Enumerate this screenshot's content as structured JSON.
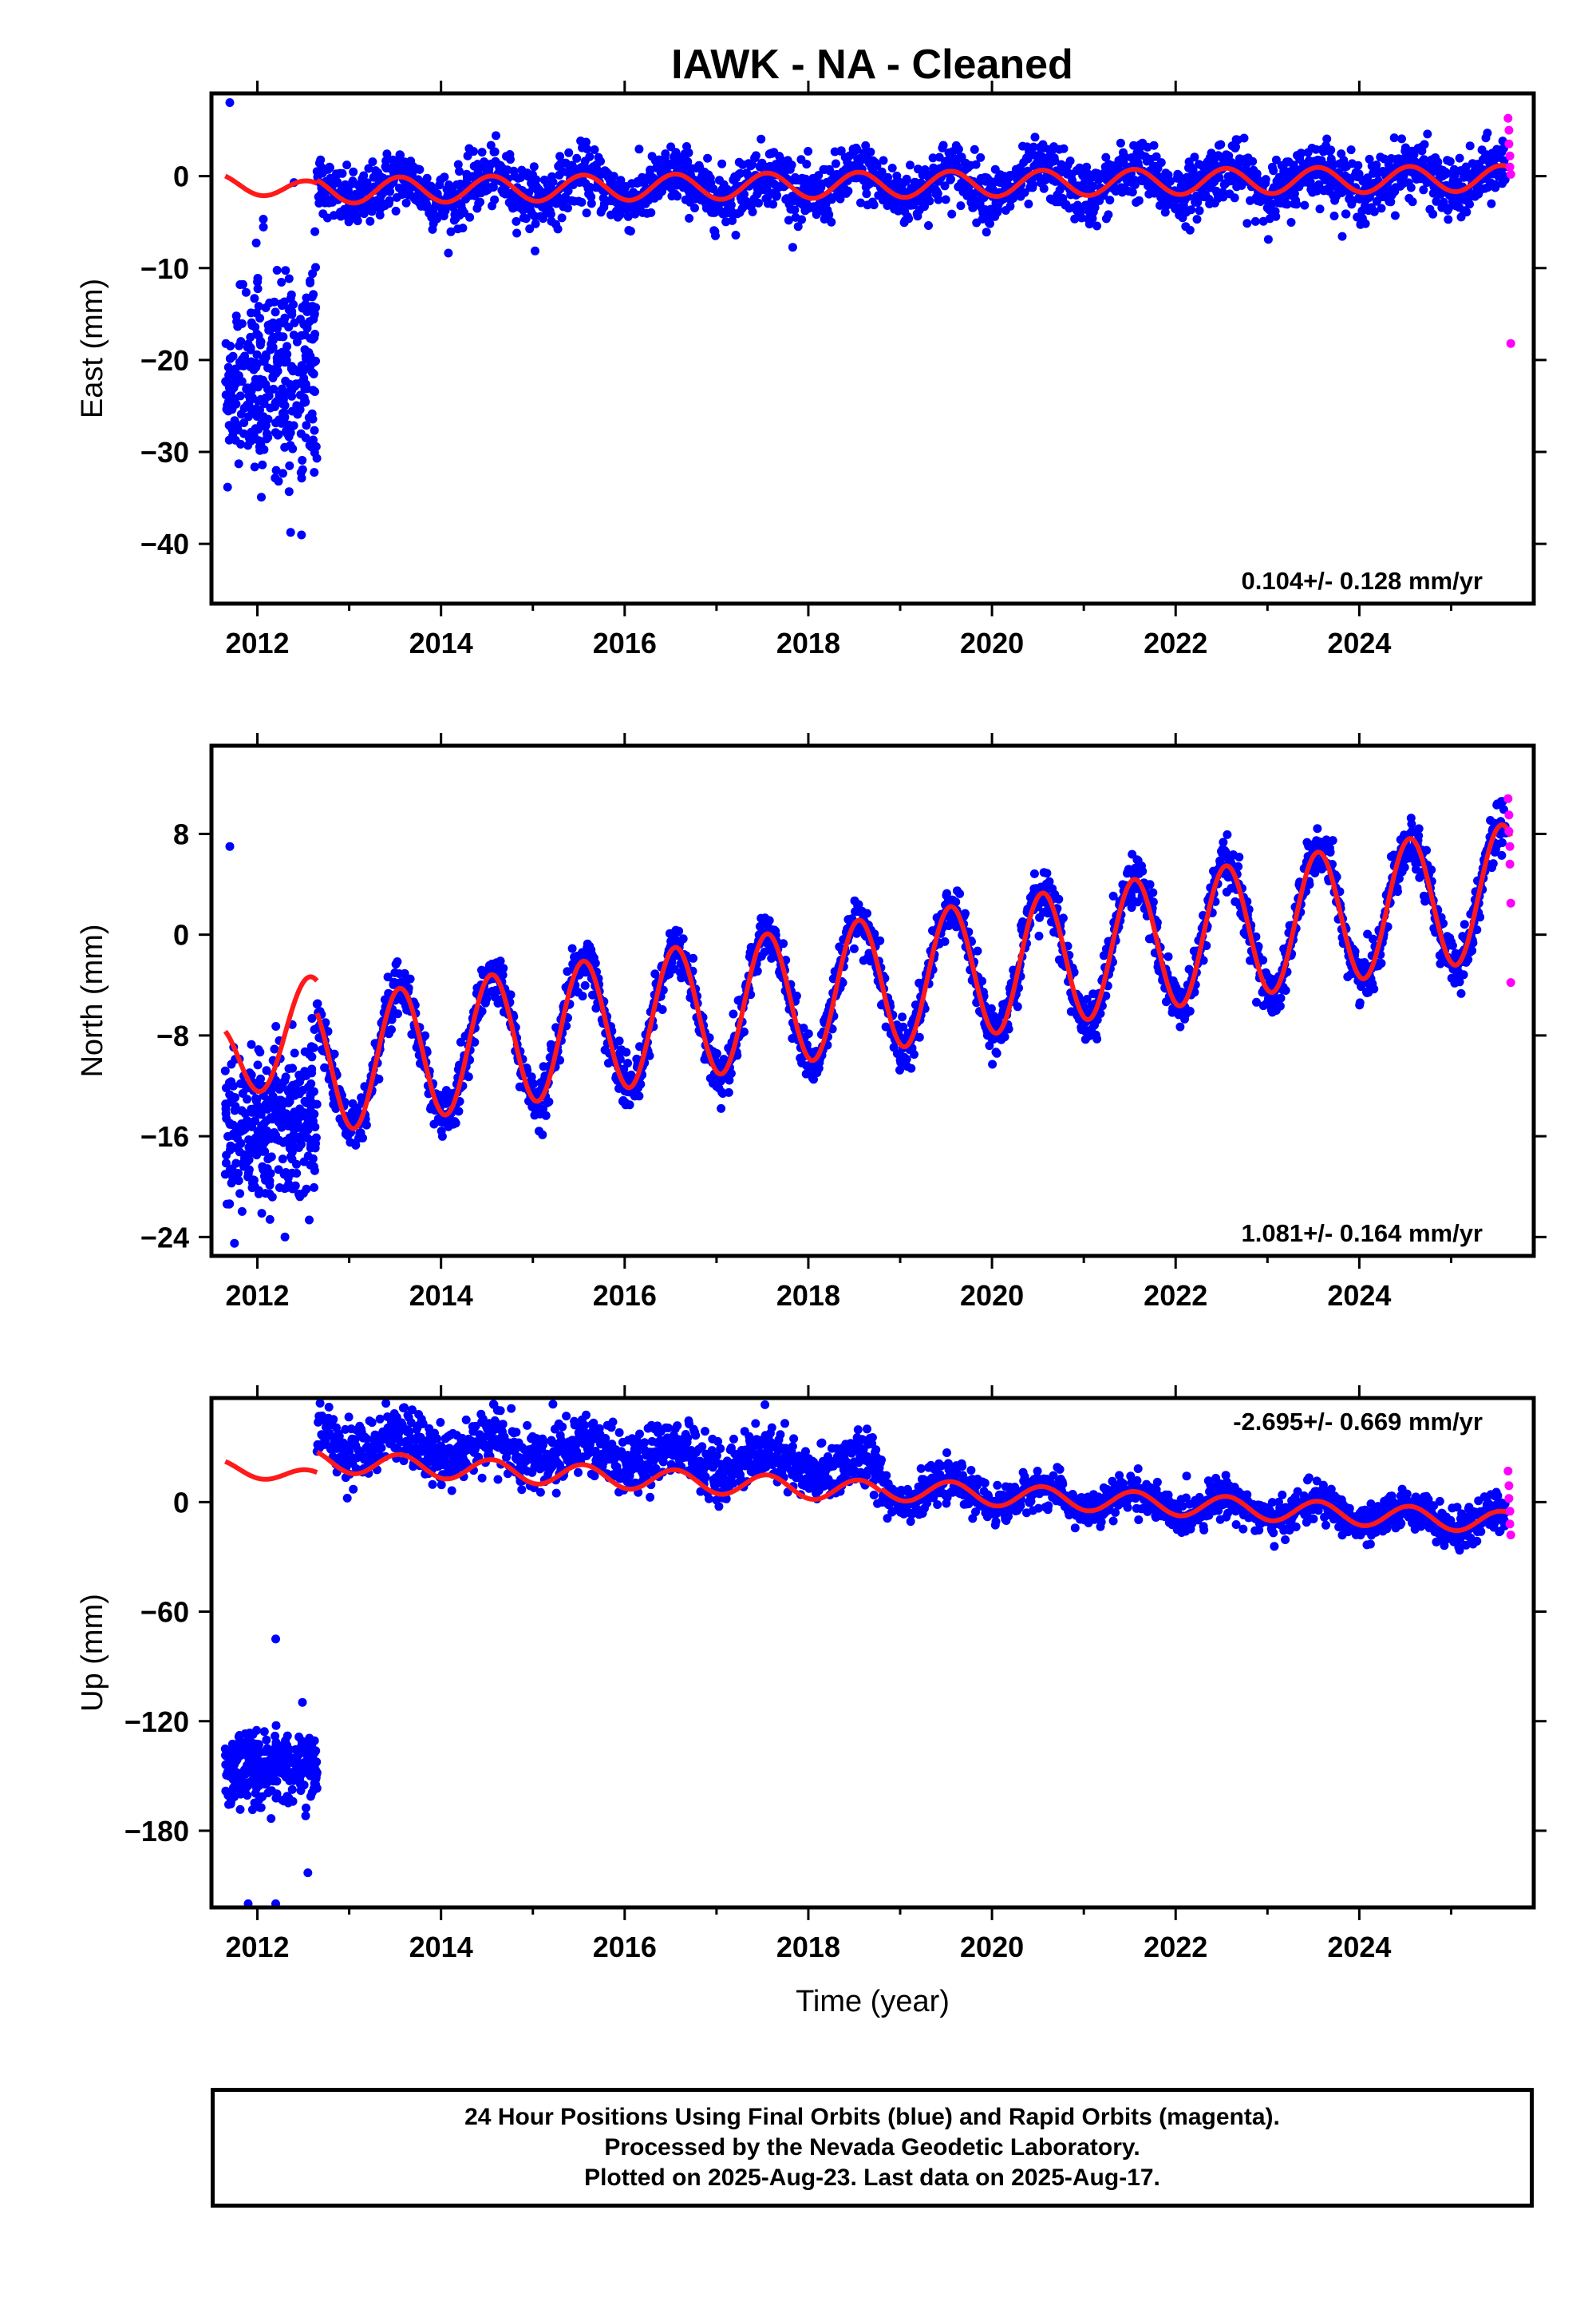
{
  "title": "IAWK  - NA - Cleaned",
  "colors": {
    "final_orbits": "#0000ff",
    "rapid_orbits": "#ff00ff",
    "model_fit": "#ff1a1a",
    "axes": "#000000"
  },
  "chart_data": [
    {
      "id": "east",
      "type": "scatter",
      "ylabel": "East (mm)",
      "xlabel": "",
      "xlim": [
        2011.5,
        2025.9
      ],
      "ylim": [
        -46.5,
        9
      ],
      "xticks": [
        2012,
        2014,
        2016,
        2018,
        2020,
        2022,
        2024
      ],
      "yticks": [
        0,
        -10,
        -20,
        -30,
        -40
      ],
      "ytick_labels": [
        "0",
        "−10",
        "−20",
        "−30",
        "−40"
      ],
      "rate_label": "0.104+/- 0.128 mm/yr",
      "rate_position": "bottom-right",
      "model": {
        "pre": {
          "start": 2011.65,
          "end": 2012.65,
          "level": -1.2,
          "amp": 1.0,
          "slope": -0.8
        },
        "post": {
          "start": 2012.65,
          "end": 2025.65,
          "level": -0.9,
          "amp": 1.4,
          "slope": 0.104
        }
      },
      "final_orbits": {
        "early": {
          "start": 2011.65,
          "end": 2012.65,
          "center": -22,
          "spread": 12,
          "count": 360
        },
        "steady_noise": 1.6,
        "count": 2400
      },
      "outliers": [
        [
          2011.7,
          8.0
        ]
      ],
      "rapid_orbits": [
        [
          2025.62,
          6.3
        ],
        [
          2025.63,
          5.0
        ],
        [
          2025.63,
          3.5
        ],
        [
          2025.64,
          2.2
        ],
        [
          2025.64,
          1.0
        ],
        [
          2025.65,
          0.2
        ],
        [
          2025.65,
          -18.2
        ]
      ]
    },
    {
      "id": "north",
      "type": "scatter",
      "ylabel": "North (mm)",
      "xlabel": "",
      "xlim": [
        2011.5,
        2025.9
      ],
      "ylim": [
        -25.5,
        15
      ],
      "xticks": [
        2012,
        2014,
        2016,
        2018,
        2020,
        2022,
        2024
      ],
      "yticks": [
        8,
        0,
        -8,
        -16,
        -24
      ],
      "ytick_labels": [
        "8",
        "0",
        "−8",
        "−16",
        "−24"
      ],
      "rate_label": "1.081+/- 0.164 mm/yr",
      "rate_position": "bottom-right",
      "model": {
        "pre": {
          "start": 2011.65,
          "end": 2012.65,
          "level": -8.5,
          "amp": 3.5,
          "slope": 4.0
        },
        "post": {
          "start": 2012.65,
          "end": 2025.65,
          "level": -3.5,
          "amp": 5.3,
          "slope": 1.081
        }
      },
      "final_orbits": {
        "early": {
          "start": 2011.65,
          "end": 2012.65,
          "center": -15,
          "spread": 6,
          "count": 360
        },
        "steady_noise": 1.0,
        "count": 2400
      },
      "outliers": [
        [
          2011.7,
          7.0
        ],
        [
          2017.05,
          -13.8
        ],
        [
          2011.75,
          -24.5
        ],
        [
          2012.3,
          -24.0
        ]
      ],
      "rapid_orbits": [
        [
          2025.62,
          10.8
        ],
        [
          2025.63,
          9.5
        ],
        [
          2025.63,
          8.2
        ],
        [
          2025.64,
          7.0
        ],
        [
          2025.64,
          5.6
        ],
        [
          2025.65,
          2.5
        ],
        [
          2025.65,
          -3.8
        ]
      ]
    },
    {
      "id": "up",
      "type": "scatter",
      "ylabel": "Up (mm)",
      "xlabel": "Time (year)",
      "xlim": [
        2011.5,
        2025.9
      ],
      "ylim": [
        -222,
        57
      ],
      "xticks": [
        2012,
        2014,
        2016,
        2018,
        2020,
        2022,
        2024
      ],
      "yticks": [
        0,
        -60,
        -120,
        -180
      ],
      "ytick_labels": [
        "0",
        "−60",
        "−120",
        "−180"
      ],
      "rate_label": "-2.695+/- 0.669 mm/yr",
      "rate_position": "top-right",
      "model": {
        "pre": {
          "start": 2011.65,
          "end": 2012.65,
          "level": 16,
          "amp": 4,
          "slope": -6
        },
        "post_a": {
          "start": 2012.65,
          "end": 2018.8,
          "level": 14,
          "amp": 6,
          "slope": -2.8
        },
        "post_b": {
          "start": 2018.8,
          "end": 2025.65,
          "level": -2,
          "amp": 6,
          "slope": -2.695
        }
      },
      "final_orbits": {
        "early": {
          "start": 2011.65,
          "end": 2012.65,
          "center": -145,
          "spread": 22,
          "count": 300
        },
        "segment_a": {
          "start": 2012.65,
          "end": 2018.8,
          "offset": 12,
          "noise": 8
        },
        "segment_b": {
          "start": 2018.8,
          "end": 2025.65,
          "offset": 0,
          "noise": 5
        },
        "count": 2400
      },
      "outliers": [
        [
          2011.9,
          -220
        ],
        [
          2012.2,
          -220
        ],
        [
          2012.55,
          -203
        ],
        [
          2012.2,
          -75
        ]
      ],
      "rapid_orbits": [
        [
          2025.62,
          17
        ],
        [
          2025.63,
          9
        ],
        [
          2025.63,
          2
        ],
        [
          2025.64,
          -5
        ],
        [
          2025.64,
          -12
        ],
        [
          2025.65,
          -18
        ]
      ]
    }
  ],
  "footer": {
    "line1": "24 Hour Positions Using Final Orbits (blue) and Rapid Orbits (magenta).",
    "line2": "Processed by the Nevada Geodetic Laboratory.",
    "line3": "Plotted on 2025-Aug-23. Last data on 2025-Aug-17."
  }
}
